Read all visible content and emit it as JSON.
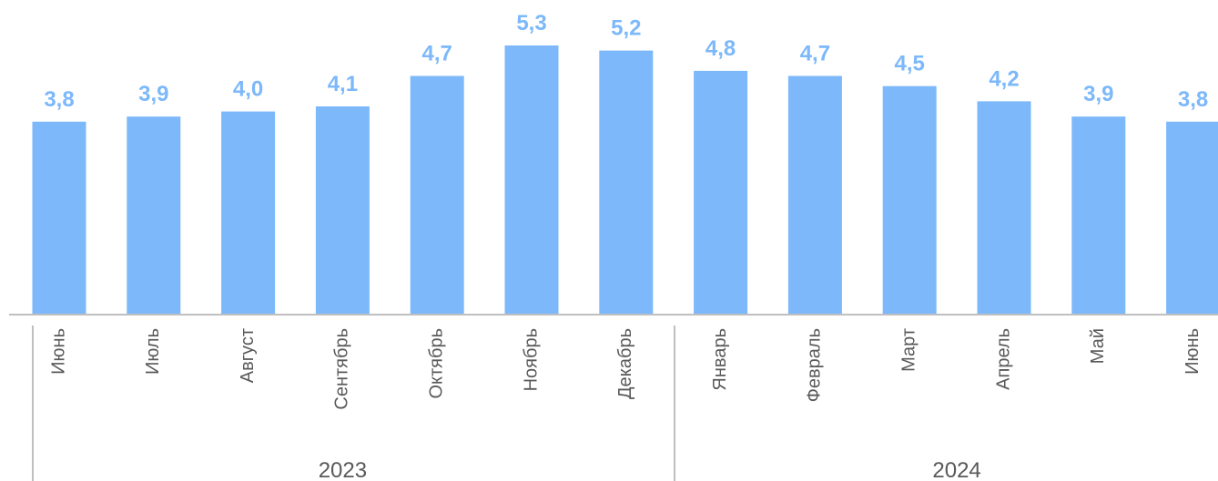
{
  "chart_data": {
    "type": "bar",
    "categories": [
      "Июнь",
      "Июль",
      "Август",
      "Сентябрь",
      "Октябрь",
      "Ноябрь",
      "Декабрь",
      "Январь",
      "Февраль",
      "Март",
      "Апрель",
      "Май",
      "Июнь"
    ],
    "values": [
      3.8,
      3.9,
      4.0,
      4.1,
      4.7,
      5.3,
      5.2,
      4.8,
      4.7,
      4.5,
      4.2,
      3.9,
      3.8
    ],
    "value_labels": [
      "3,8",
      "3,9",
      "4,0",
      "4,1",
      "4,7",
      "5,3",
      "5,2",
      "4,8",
      "4,7",
      "4,5",
      "4,2",
      "3,9",
      "3,8"
    ],
    "groups": [
      {
        "label": "2023",
        "categories": [
          "Июнь",
          "Июль",
          "Август",
          "Сентябрь",
          "Октябрь",
          "Ноябрь",
          "Декабрь"
        ]
      },
      {
        "label": "2024",
        "categories": [
          "Январь",
          "Февраль",
          "Март",
          "Апрель",
          "Май",
          "Июнь"
        ]
      }
    ],
    "title": "",
    "xlabel": "",
    "ylabel": "",
    "ylim": [
      0,
      5.6
    ],
    "grid": false,
    "legend": "none",
    "bar_color": "#7cb8fa",
    "label_color": "#7cb8fa",
    "axis_color": "#bfbfbf",
    "text_color": "#595959"
  }
}
